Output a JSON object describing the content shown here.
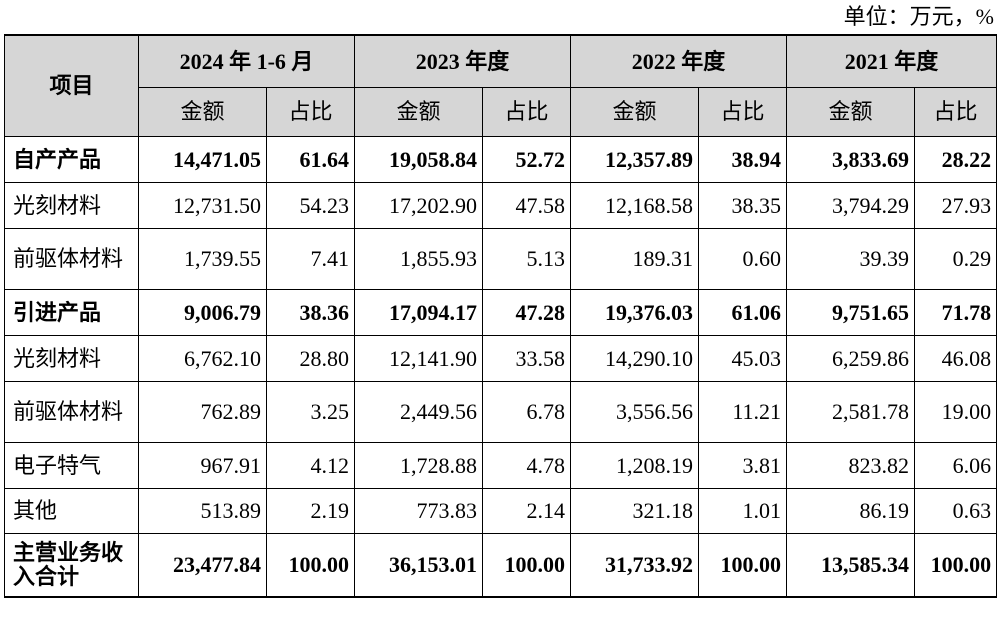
{
  "unit_note": "单位：万元，%",
  "header": {
    "item": "项目",
    "periods": [
      "2024 年 1-6 月",
      "2023 年度",
      "2022 年度",
      "2021 年度"
    ],
    "amount": "金额",
    "ratio": "占比"
  },
  "rows": [
    {
      "label": "自产产品",
      "bold": true,
      "cells": [
        "14,471.05",
        "61.64",
        "19,058.84",
        "52.72",
        "12,357.89",
        "38.94",
        "3,833.69",
        "28.22"
      ]
    },
    {
      "label": "光刻材料",
      "bold": false,
      "cells": [
        "12,731.50",
        "54.23",
        "17,202.90",
        "47.58",
        "12,168.58",
        "38.35",
        "3,794.29",
        "27.93"
      ]
    },
    {
      "label": "前驱体材料",
      "bold": false,
      "cells": [
        "1,739.55",
        "7.41",
        "1,855.93",
        "5.13",
        "189.31",
        "0.60",
        "39.39",
        "0.29"
      ]
    },
    {
      "label": "引进产品",
      "bold": true,
      "cells": [
        "9,006.79",
        "38.36",
        "17,094.17",
        "47.28",
        "19,376.03",
        "61.06",
        "9,751.65",
        "71.78"
      ]
    },
    {
      "label": "光刻材料",
      "bold": false,
      "cells": [
        "6,762.10",
        "28.80",
        "12,141.90",
        "33.58",
        "14,290.10",
        "45.03",
        "6,259.86",
        "46.08"
      ]
    },
    {
      "label": "前驱体材料",
      "bold": false,
      "cells": [
        "762.89",
        "3.25",
        "2,449.56",
        "6.78",
        "3,556.56",
        "11.21",
        "2,581.78",
        "19.00"
      ]
    },
    {
      "label": "电子特气",
      "bold": false,
      "cells": [
        "967.91",
        "4.12",
        "1,728.88",
        "4.78",
        "1,208.19",
        "3.81",
        "823.82",
        "6.06"
      ]
    },
    {
      "label": "其他",
      "bold": false,
      "cells": [
        "513.89",
        "2.19",
        "773.83",
        "2.14",
        "321.18",
        "1.01",
        "86.19",
        "0.63"
      ]
    },
    {
      "label": "主营业务收入合计",
      "bold": true,
      "cells": [
        "23,477.84",
        "100.00",
        "36,153.01",
        "100.00",
        "31,733.92",
        "100.00",
        "13,585.34",
        "100.00"
      ]
    }
  ]
}
